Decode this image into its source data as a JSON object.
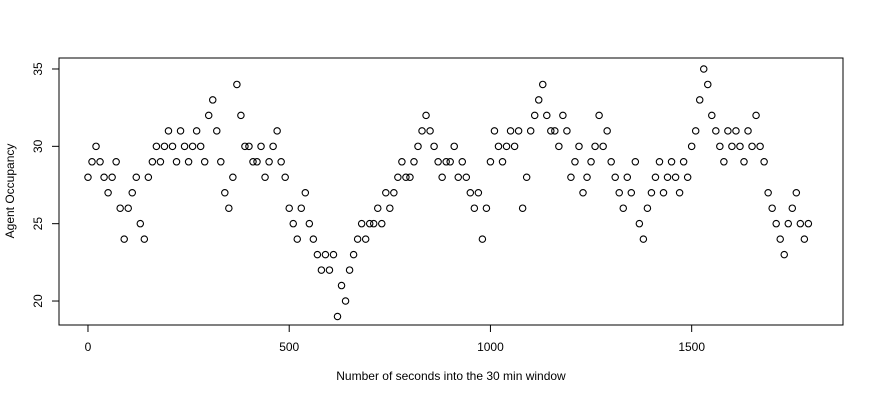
{
  "chart_data": {
    "type": "scatter",
    "x_label": "Number of seconds into the 30 min window",
    "y_label": "Agent Occupancy",
    "x": [
      0,
      10,
      20,
      30,
      40,
      50,
      60,
      70,
      80,
      90,
      100,
      110,
      120,
      130,
      140,
      150,
      160,
      170,
      180,
      190,
      200,
      210,
      220,
      230,
      240,
      250,
      260,
      270,
      280,
      290,
      300,
      310,
      320,
      330,
      340,
      350,
      360,
      370,
      380,
      390,
      400,
      410,
      420,
      430,
      440,
      450,
      460,
      470,
      480,
      490,
      500,
      510,
      520,
      530,
      540,
      550,
      560,
      570,
      580,
      590,
      600,
      610,
      620,
      630,
      640,
      650,
      660,
      670,
      680,
      690,
      700,
      710,
      720,
      730,
      740,
      750,
      760,
      770,
      780,
      790,
      800,
      810,
      820,
      830,
      840,
      850,
      860,
      870,
      880,
      890,
      900,
      910,
      920,
      930,
      940,
      950,
      960,
      970,
      980,
      990,
      1000,
      1010,
      1020,
      1030,
      1040,
      1050,
      1060,
      1070,
      1080,
      1090,
      1100,
      1110,
      1120,
      1130,
      1140,
      1150,
      1160,
      1170,
      1180,
      1190,
      1200,
      1210,
      1220,
      1230,
      1240,
      1250,
      1260,
      1270,
      1280,
      1290,
      1300,
      1310,
      1320,
      1330,
      1340,
      1350,
      1360,
      1370,
      1380,
      1390,
      1400,
      1410,
      1420,
      1430,
      1440,
      1450,
      1460,
      1470,
      1480,
      1490,
      1500,
      1510,
      1520,
      1530,
      1540,
      1550,
      1560,
      1570,
      1580,
      1590,
      1600,
      1610,
      1620,
      1630,
      1640,
      1650,
      1660,
      1670,
      1680,
      1690,
      1700,
      1710,
      1720,
      1730,
      1740,
      1750,
      1760,
      1770,
      1780,
      1790
    ],
    "values": [
      28,
      29,
      30,
      29,
      28,
      27,
      28,
      29,
      26,
      24,
      26,
      27,
      28,
      25,
      24,
      28,
      29,
      30,
      29,
      30,
      31,
      30,
      29,
      31,
      30,
      29,
      30,
      31,
      30,
      29,
      32,
      33,
      31,
      29,
      27,
      26,
      28,
      34,
      32,
      30,
      30,
      29,
      29,
      30,
      28,
      29,
      30,
      31,
      29,
      28,
      26,
      25,
      24,
      26,
      27,
      25,
      24,
      23,
      22,
      23,
      22,
      23,
      19,
      21,
      20,
      22,
      23,
      24,
      25,
      24,
      25,
      25,
      26,
      25,
      27,
      26,
      27,
      28,
      29,
      28,
      28,
      29,
      30,
      31,
      32,
      31,
      30,
      29,
      28,
      29,
      29,
      30,
      28,
      29,
      28,
      27,
      26,
      27,
      24,
      26,
      29,
      31,
      30,
      29,
      30,
      31,
      30,
      31,
      26,
      28,
      31,
      32,
      33,
      34,
      32,
      31,
      31,
      30,
      32,
      31,
      28,
      29,
      30,
      27,
      28,
      29,
      30,
      32,
      30,
      31,
      29,
      28,
      27,
      26,
      28,
      27,
      29,
      25,
      24,
      26,
      27,
      28,
      29,
      27,
      28,
      29,
      28,
      27,
      29,
      28,
      30,
      31,
      33,
      35,
      34,
      32,
      31,
      30,
      29,
      31,
      30,
      31,
      30,
      29,
      31,
      30,
      32,
      30,
      29,
      27,
      26,
      25,
      24,
      23,
      25,
      26,
      27,
      25,
      24,
      25
    ],
    "color": "#000000",
    "xlim": [
      -72,
      1876
    ],
    "ylim": [
      18.45,
      35.71
    ],
    "xticks": [
      0,
      500,
      1000,
      1500
    ],
    "yticks": [
      20,
      25,
      30,
      35
    ]
  }
}
